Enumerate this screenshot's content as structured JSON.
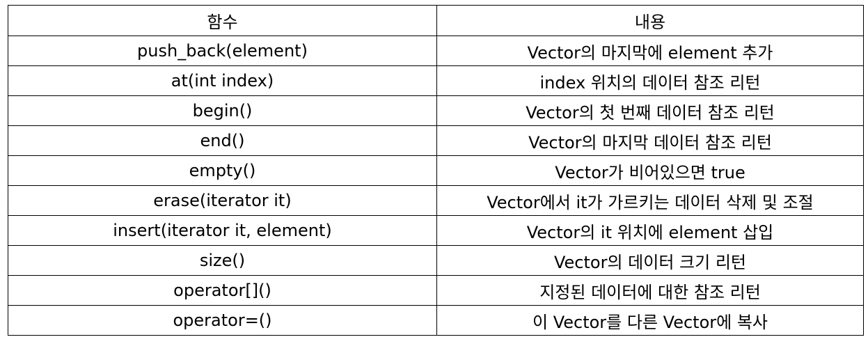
{
  "table": {
    "headers": [
      "함수",
      "내용"
    ],
    "rows": [
      [
        "push_back(element)",
        "Vector의 마지막에 element 추가"
      ],
      [
        "at(int index)",
        "index 위치의 데이터 참조 리턴"
      ],
      [
        "begin()",
        "Vector의 첫 번째 데이터 참조 리턴"
      ],
      [
        "end()",
        "Vector의 마지막 데이터 참조 리턴"
      ],
      [
        "empty()",
        "Vector가 비어있으면 true"
      ],
      [
        "erase(iterator it)",
        "Vector에서 it가 가르키는 데이터 삭제 및 조절"
      ],
      [
        "insert(iterator it, element)",
        "Vector의 it 위치에 element 삽입"
      ],
      [
        "size()",
        "Vector의 데이터 크기 리턴"
      ],
      [
        "operator[]()",
        "지정된 데이터에 대한 참조 리턴"
      ],
      [
        "operator=()",
        "이 Vector를 다른 Vector에 복사"
      ]
    ]
  }
}
